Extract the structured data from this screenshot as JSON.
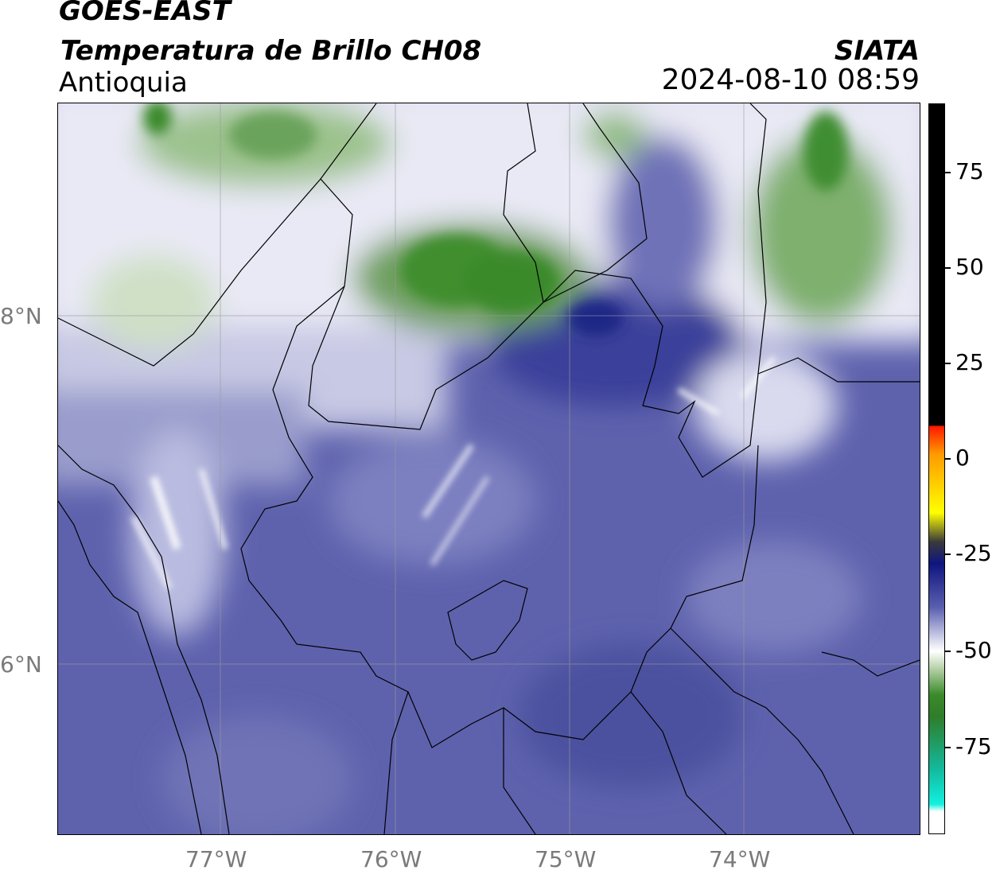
{
  "header": {
    "satellite": "GOES-EAST",
    "product": "Temperatura de Brillo CH08",
    "region": "Antioquia",
    "brand": "SIATA",
    "timestamp": "2024-08-10 08:59"
  },
  "map": {
    "lon_labels": [
      "77°W",
      "76°W",
      "75°W",
      "74°W"
    ],
    "lat_labels": [
      "8°N",
      "6°N"
    ]
  },
  "colorbar": {
    "labels": [
      "75",
      "50",
      "25",
      "0",
      "-25",
      "-50",
      "-75"
    ],
    "colors": {
      "max": "#000000",
      "red": "#ff1a00",
      "orange": "#ff9a00",
      "yellow": "#ffff00",
      "navy": "#0f1580",
      "blue": "#5a5fae",
      "white": "#ffffff",
      "green": "#3a8a2a",
      "cyan": "#12f0e0"
    }
  }
}
